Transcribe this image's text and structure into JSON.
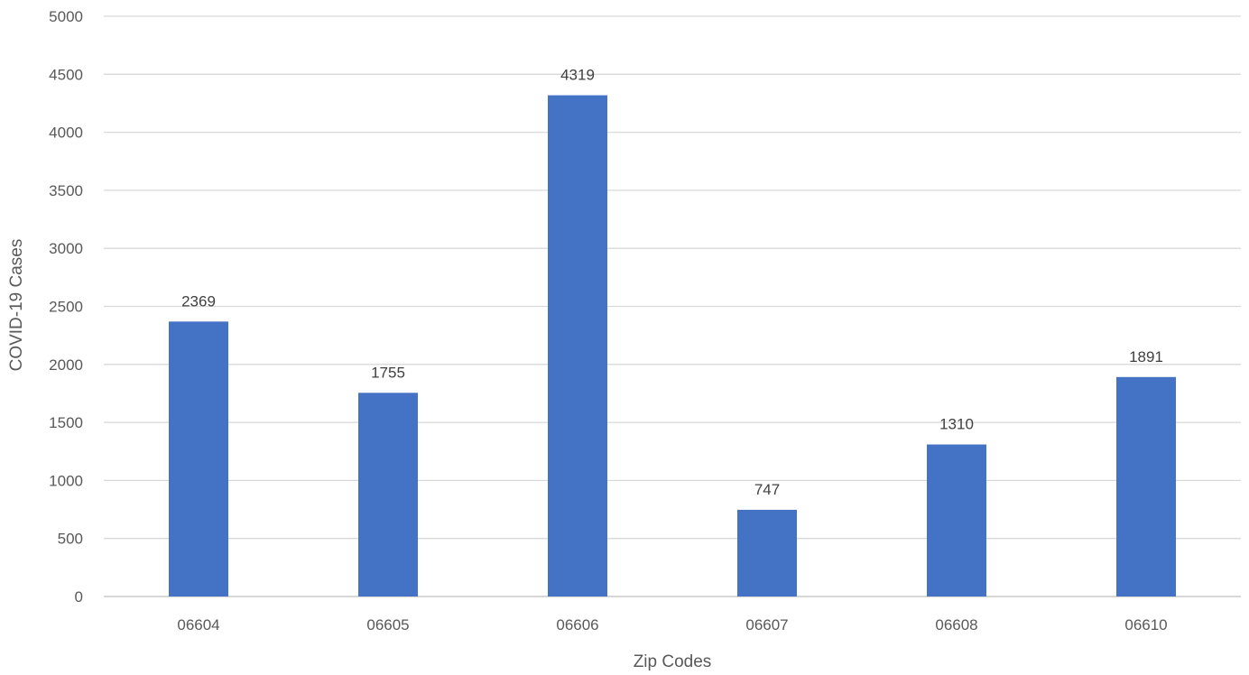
{
  "chart_data": {
    "type": "bar",
    "categories": [
      "06604",
      "06605",
      "06606",
      "06607",
      "06608",
      "06610"
    ],
    "values": [
      2369,
      1755,
      4319,
      747,
      1310,
      1891
    ],
    "data_labels": [
      "2369",
      "1755",
      "4319",
      "747",
      "1310",
      "1891"
    ],
    "title": "",
    "xlabel": "Zip Codes",
    "ylabel": "COVID-19 Cases",
    "ylim": [
      0,
      5000
    ],
    "yticks": [
      "0",
      "500",
      "1000",
      "1500",
      "2000",
      "2500",
      "3000",
      "3500",
      "4000",
      "4500",
      "5000"
    ],
    "grid": true,
    "legend": "none",
    "bar_color": "#4472C4"
  }
}
